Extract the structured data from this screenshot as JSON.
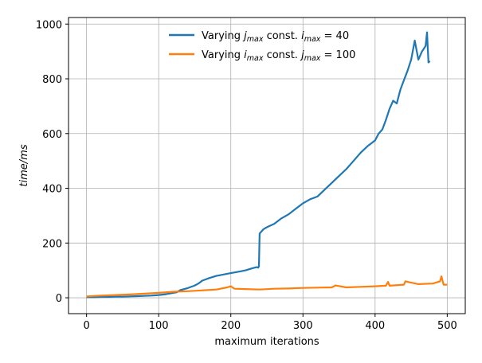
{
  "colors": {
    "series_1": "#1f77b4",
    "series_2": "#ff7f0e",
    "grid": "#b0b0b0",
    "axis": "#000000"
  },
  "chart_data": {
    "type": "line",
    "title": "",
    "xlabel": "maximum iterations",
    "ylabel": "time/ms",
    "xlim": [
      -25,
      525
    ],
    "ylim": [
      -58,
      1024
    ],
    "xticks": [
      0,
      100,
      200,
      300,
      400,
      500
    ],
    "yticks": [
      0,
      200,
      400,
      600,
      800,
      1000
    ],
    "grid": true,
    "legend_position": "top-center",
    "series": [
      {
        "name": "Varying j_max const. i_max = 40",
        "legend": {
          "pre": "Varying ",
          "v1": "j",
          "sub1": "max",
          "mid": " const. ",
          "v2": "i",
          "sub2": "max",
          "post": " = 40"
        },
        "color": "#1f77b4",
        "x": [
          0,
          10,
          20,
          30,
          40,
          50,
          60,
          70,
          80,
          90,
          100,
          110,
          120,
          125,
          130,
          140,
          150,
          155,
          160,
          170,
          180,
          190,
          200,
          210,
          220,
          230,
          236,
          238,
          239,
          240,
          245,
          250,
          260,
          270,
          280,
          290,
          300,
          310,
          320,
          330,
          340,
          350,
          360,
          370,
          380,
          390,
          400,
          405,
          410,
          415,
          420,
          425,
          430,
          435,
          440,
          445,
          450,
          455,
          460,
          465,
          470,
          472,
          474,
          476
        ],
        "y": [
          2,
          2,
          3,
          3,
          4,
          4,
          5,
          6,
          7,
          8,
          10,
          13,
          18,
          20,
          28,
          35,
          45,
          52,
          62,
          72,
          80,
          85,
          90,
          95,
          100,
          108,
          112,
          110,
          115,
          235,
          250,
          258,
          270,
          290,
          305,
          325,
          345,
          360,
          370,
          395,
          420,
          445,
          470,
          500,
          530,
          555,
          575,
          600,
          615,
          650,
          690,
          720,
          710,
          760,
          795,
          830,
          870,
          940,
          870,
          900,
          920,
          970,
          860,
          865
        ]
      },
      {
        "name": "Varying i_max const. j_max = 100",
        "legend": {
          "pre": "Varying ",
          "v1": "i",
          "sub1": "max",
          "mid": " const. ",
          "v2": "j",
          "sub2": "max",
          "post": " = 100"
        },
        "color": "#ff7f0e",
        "x": [
          0,
          20,
          40,
          60,
          80,
          100,
          120,
          140,
          160,
          180,
          195,
          200,
          205,
          220,
          240,
          260,
          280,
          300,
          320,
          340,
          345,
          360,
          380,
          400,
          415,
          418,
          420,
          440,
          442,
          460,
          480,
          490,
          492,
          495,
          500
        ],
        "y": [
          5,
          8,
          10,
          12,
          15,
          18,
          22,
          24,
          27,
          30,
          38,
          42,
          33,
          32,
          30,
          33,
          34,
          36,
          37,
          38,
          45,
          38,
          40,
          42,
          44,
          58,
          44,
          48,
          60,
          50,
          52,
          60,
          78,
          48,
          48
        ]
      }
    ]
  }
}
